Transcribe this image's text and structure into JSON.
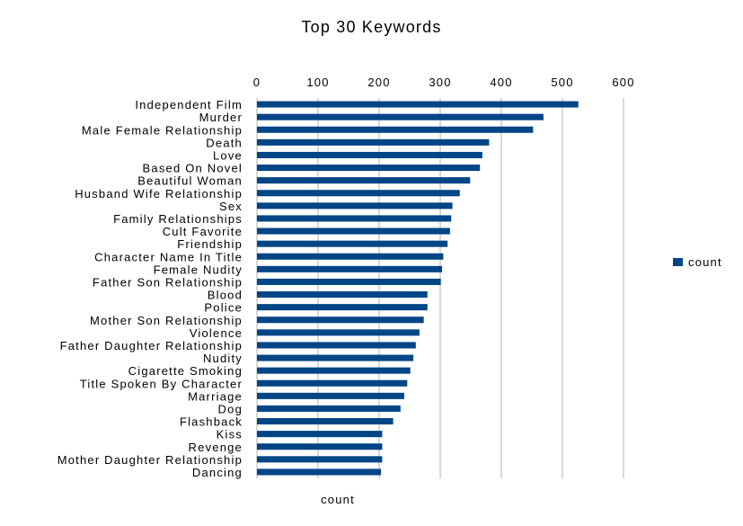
{
  "chart_data": {
    "type": "bar",
    "orientation": "horizontal",
    "title": "Top 30 Keywords",
    "xlabel": "count",
    "ylabel": "",
    "xlim": [
      0,
      600
    ],
    "xticks": [
      0,
      100,
      200,
      300,
      400,
      500,
      600
    ],
    "grid": true,
    "legend": "right",
    "series": [
      {
        "name": "count",
        "color": "#004586",
        "values": [
          526,
          469,
          452,
          380,
          369,
          365,
          349,
          332,
          320,
          318,
          316,
          312,
          305,
          303,
          301,
          279,
          279,
          273,
          266,
          260,
          256,
          251,
          246,
          241,
          235,
          223,
          205,
          205,
          205,
          203
        ]
      }
    ],
    "categories": [
      "Independent Film",
      "Murder",
      "Male Female Relationship",
      "Death",
      "Love",
      "Based On Novel",
      "Beautiful Woman",
      "Husband Wife Relationship",
      "Sex",
      "Family Relationships",
      "Cult Favorite",
      "Friendship",
      "Character Name In Title",
      "Female Nudity",
      "Father Son Relationship",
      "Blood",
      "Police",
      "Mother Son Relationship",
      "Violence",
      "Father Daughter Relationship",
      "Nudity",
      "Cigarette Smoking",
      "Title Spoken By Character",
      "Marriage",
      "Dog",
      "Flashback",
      "Kiss",
      "Revenge",
      "Mother Daughter Relationship",
      "Dancing"
    ]
  }
}
